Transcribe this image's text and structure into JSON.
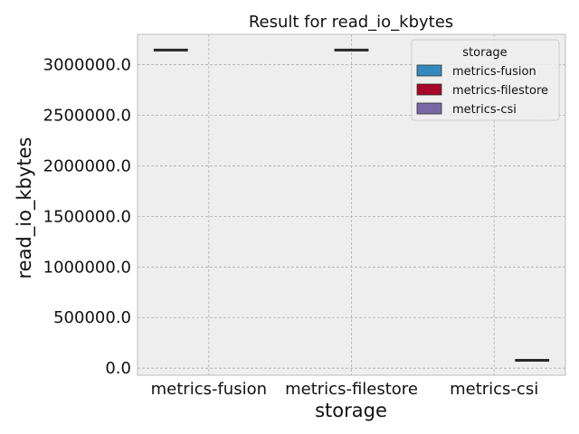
{
  "chart_data": {
    "type": "box",
    "title": "Result for read_io_kbytes",
    "xlabel": "storage",
    "ylabel": "read_io_kbytes",
    "categories": [
      "metrics-fusion",
      "metrics-filestore",
      "metrics-csi"
    ],
    "ylim": [
      -70000,
      3300000
    ],
    "yticks": [
      0,
      500000,
      1000000,
      1500000,
      2000000,
      2500000,
      3000000
    ],
    "ytick_labels": [
      "0.0",
      "500000.0",
      "1000000.0",
      "1500000.0",
      "2000000.0",
      "2500000.0",
      "3000000.0"
    ],
    "grid": true,
    "series": [
      {
        "name": "metrics-fusion",
        "color": "#348ABD",
        "values": [
          3145000,
          null,
          null
        ]
      },
      {
        "name": "metrics-filestore",
        "color": "#A60628",
        "values": [
          null,
          3145000,
          null
        ]
      },
      {
        "name": "metrics-csi",
        "color": "#7A68A6",
        "values": [
          null,
          null,
          78000
        ]
      }
    ],
    "legend": {
      "title": "storage",
      "placement": "top-right"
    }
  }
}
